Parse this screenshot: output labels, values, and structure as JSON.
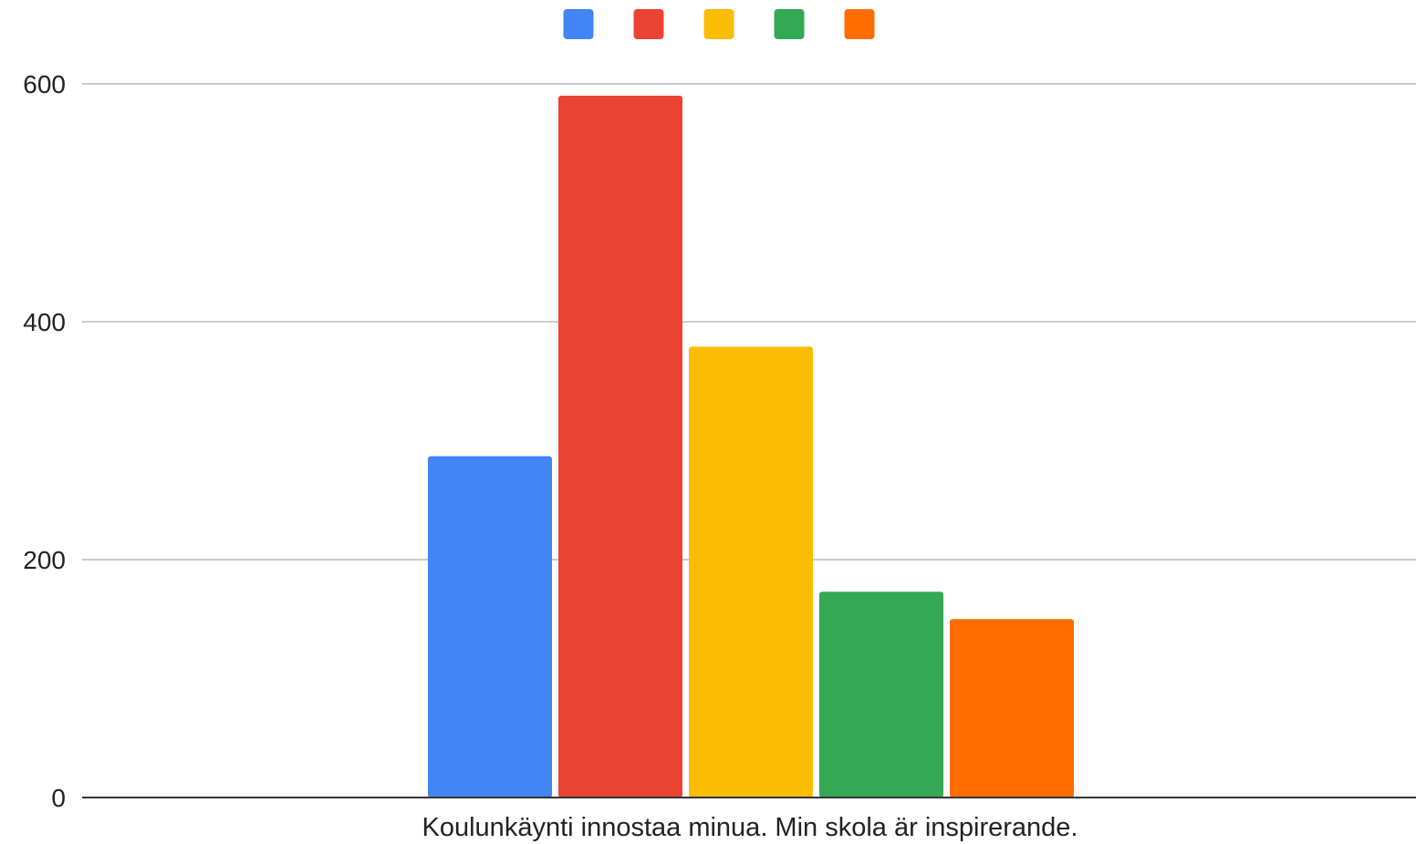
{
  "chart_data": {
    "type": "bar",
    "categories": [
      "Koulunkäynti innostaa minua. Min skola är inspirerande."
    ],
    "series": [
      {
        "color": "#4285F4",
        "values": [
          287
        ]
      },
      {
        "color": "#EA4335",
        "values": [
          590
        ]
      },
      {
        "color": "#FBBC04",
        "values": [
          379
        ]
      },
      {
        "color": "#34A853",
        "values": [
          173
        ]
      },
      {
        "color": "#FF6D01",
        "values": [
          150
        ]
      }
    ],
    "yticks": [
      "0",
      "200",
      "400",
      "600"
    ],
    "ylim": [
      0,
      600
    ],
    "grid": true,
    "legend_position": "top-center"
  }
}
